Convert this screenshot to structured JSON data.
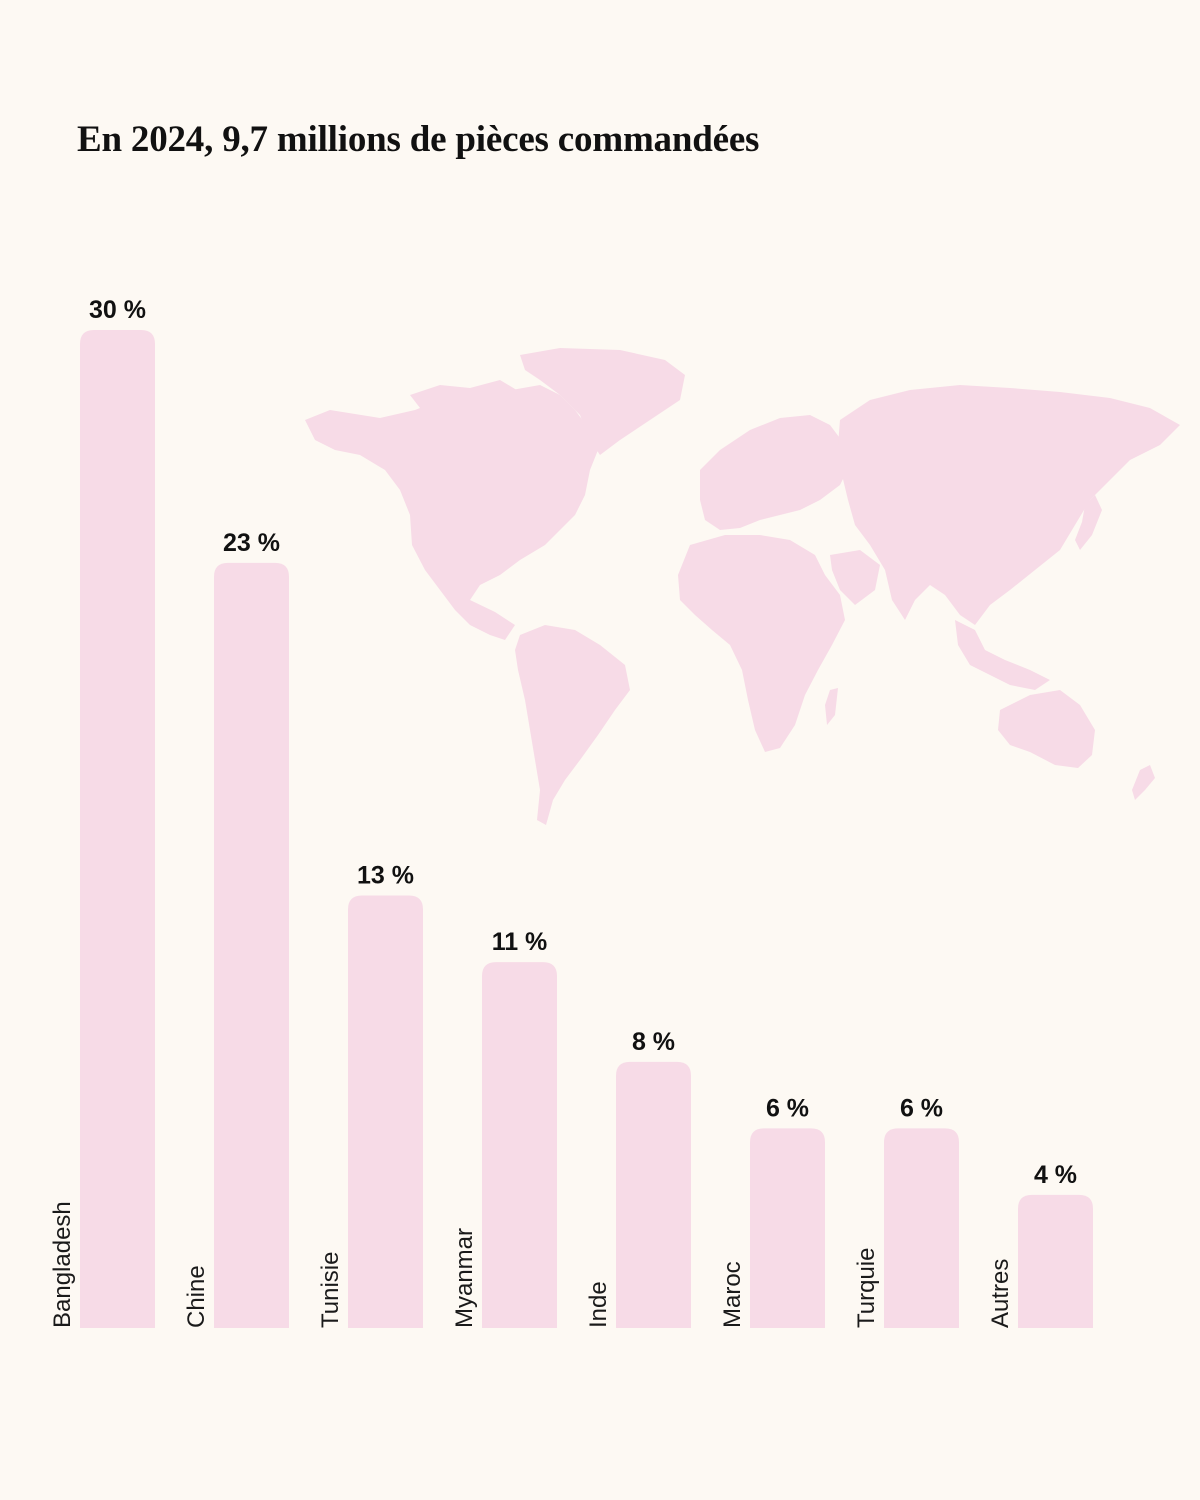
{
  "title": "En 2024, 9,7 millions de pièces commandées",
  "colors": {
    "background": "#fdf9f3",
    "bar": "#f7dbe7",
    "map": "#f7dbe7",
    "text": "#111111"
  },
  "map_icon": "world-map",
  "chart_data": {
    "type": "bar",
    "title": "En 2024, 9,7 millions de pièces commandées",
    "xlabel": "",
    "ylabel": "",
    "unit": "%",
    "categories": [
      "Bangladesh",
      "Chine",
      "Tunisie",
      "Myanmar",
      "Inde",
      "Maroc",
      "Turquie",
      "Autres"
    ],
    "values": [
      30,
      23,
      13,
      11,
      8,
      6,
      6,
      4
    ],
    "value_labels": [
      "30 %",
      "23 %",
      "13 %",
      "11 %",
      "8 %",
      "6 %",
      "6 %",
      "4 %"
    ],
    "ylim": [
      0,
      30
    ],
    "grid": false,
    "legend": "none",
    "category_label_orientation": "vertical"
  }
}
